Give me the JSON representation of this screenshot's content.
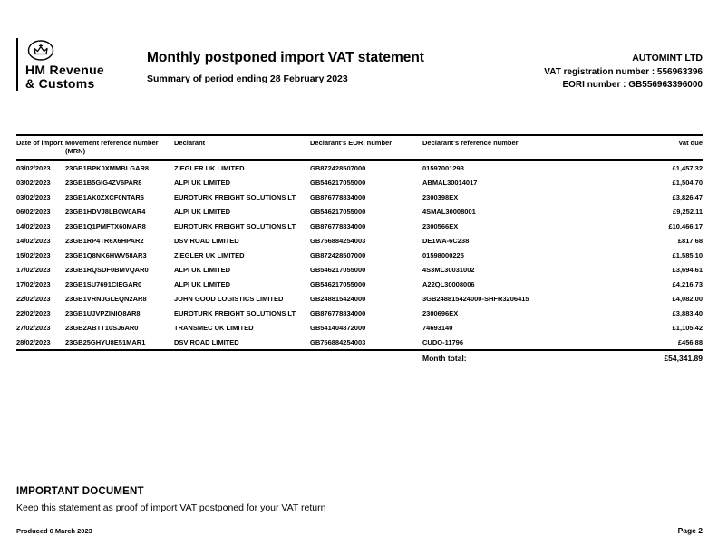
{
  "logo": {
    "line1": "HM Revenue",
    "line2": "& Customs"
  },
  "header": {
    "title": "Monthly postponed import VAT statement",
    "subtitle": "Summary of period ending 28 February 2023",
    "company": "AUTOMINT LTD",
    "vat_reg": "VAT registration number : 556963396",
    "eori": "EORI number : GB556963396000"
  },
  "table": {
    "columns": {
      "date": "Date of import",
      "mrn": "Movement reference number (MRN)",
      "declarant": "Declarant",
      "eori": "Declarant's EORI number",
      "ref": "Declarant's reference number",
      "vat": "Vat due"
    },
    "rows": [
      {
        "date": "03/02/2023",
        "mrn": "23GB1BPK0XMMBLGAR8",
        "declarant": "ZIEGLER UK LIMITED",
        "eori": "GB872428507000",
        "ref": "01597001293",
        "vat": "£1,457.32"
      },
      {
        "date": "03/02/2023",
        "mrn": "23GB1B5GIG4ZV6PAR8",
        "declarant": "ALPI UK LIMITED",
        "eori": "GB546217055000",
        "ref": "ABMAL30014017",
        "vat": "£1,504.70"
      },
      {
        "date": "03/02/2023",
        "mrn": "23GB1AK0ZXCF0NTAR6",
        "declarant": "EUROTURK FREIGHT SOLUTIONS  LT",
        "eori": "GB876778834000",
        "ref": "2300398EX",
        "vat": "£3,826.47"
      },
      {
        "date": "06/02/2023",
        "mrn": "23GB1HDVJ8LB0W0AR4",
        "declarant": "ALPI UK LIMITED",
        "eori": "GB546217055000",
        "ref": "4SMAL30008001",
        "vat": "£9,252.11"
      },
      {
        "date": "14/02/2023",
        "mrn": "23GB1Q1PMFTX60MAR8",
        "declarant": "EUROTURK FREIGHT SOLUTIONS  LT",
        "eori": "GB876778834000",
        "ref": "2300566EX",
        "vat": "£10,466.17"
      },
      {
        "date": "14/02/2023",
        "mrn": "23GB1RP4TR6X6HPAR2",
        "declarant": "DSV ROAD LIMITED",
        "eori": "GB756884254003",
        "ref": "DE1WA-6C238",
        "vat": "£817.68"
      },
      {
        "date": "15/02/2023",
        "mrn": "23GB1Q8NK6HWV58AR3",
        "declarant": "ZIEGLER UK LIMITED",
        "eori": "GB872428507000",
        "ref": "01598000225",
        "vat": "£1,585.10"
      },
      {
        "date": "17/02/2023",
        "mrn": "23GB1RQSDF0BMVQAR0",
        "declarant": "ALPI UK LIMITED",
        "eori": "GB546217055000",
        "ref": "4S3ML30031002",
        "vat": "£3,694.61"
      },
      {
        "date": "17/02/2023",
        "mrn": "23GB1SU7691CIEGAR0",
        "declarant": "ALPI UK LIMITED",
        "eori": "GB546217055000",
        "ref": "A22QL30008006",
        "vat": "£4,216.73"
      },
      {
        "date": "22/02/2023",
        "mrn": "23GB1VRNJGLEQN2AR8",
        "declarant": "JOHN GOOD LOGISTICS LIMITED",
        "eori": "GB248815424000",
        "ref": "3GB248815424000-SHFR3206415",
        "vat": "£4,082.00"
      },
      {
        "date": "22/02/2023",
        "mrn": "23GB1UJVPZINIQ8AR8",
        "declarant": "EUROTURK FREIGHT SOLUTIONS  LT",
        "eori": "GB876778834000",
        "ref": "2300696EX",
        "vat": "£3,883.40"
      },
      {
        "date": "27/02/2023",
        "mrn": "23GB2ABTT10SJ6AR0",
        "declarant": "TRANSMEC UK LIMITED",
        "eori": "GB541404872000",
        "ref": "74693140",
        "vat": "£1,105.42"
      },
      {
        "date": "28/02/2023",
        "mrn": "23GB25GHYU8E51MAR1",
        "declarant": "DSV ROAD LIMITED",
        "eori": "GB756884254003",
        "ref": "CUDO-11796",
        "vat": "£456.88"
      }
    ],
    "month_total_label": "Month total:",
    "month_total": "£54,341.89"
  },
  "footer": {
    "important": "IMPORTANT DOCUMENT",
    "keep": "Keep this statement as proof of import VAT postponed for your VAT return",
    "produced": "Produced 6 March 2023",
    "page": "Page 2"
  }
}
